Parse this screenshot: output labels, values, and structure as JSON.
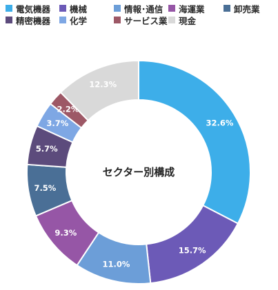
{
  "chart_data": {
    "type": "pie",
    "donut": true,
    "center_label": "セクター別構成",
    "start_angle_deg": 0,
    "direction": "clockwise",
    "slices": [
      {
        "name": "電気機器",
        "value": 32.6,
        "label": "32.6%",
        "color": "#3daee9"
      },
      {
        "name": "機械",
        "value": 15.7,
        "label": "15.7%",
        "color": "#6c5ab7"
      },
      {
        "name": "情報･通信",
        "value": 11.0,
        "label": "11.0%",
        "color": "#6c9ed8"
      },
      {
        "name": "海運業",
        "value": 9.3,
        "label": "9.3%",
        "color": "#9656a6"
      },
      {
        "name": "卸売業",
        "value": 7.5,
        "label": "7.5%",
        "color": "#4a6f96"
      },
      {
        "name": "精密機器",
        "value": 5.7,
        "label": "5.7%",
        "color": "#5c4b7c"
      },
      {
        "name": "化学",
        "value": 3.7,
        "label": "3.7%",
        "color": "#7ea7e4"
      },
      {
        "name": "サービス業",
        "value": 2.2,
        "label": "2.2%",
        "color": "#9d5866"
      },
      {
        "name": "現金",
        "value": 12.3,
        "label": "12.3%",
        "color": "#d9d9d9"
      }
    ],
    "legend_position": "top"
  }
}
